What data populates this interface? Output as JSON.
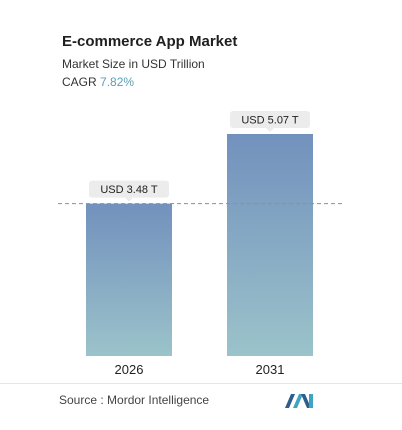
{
  "header": {
    "title": "E-commerce App Market",
    "subtitle": "Market Size in USD Trillion",
    "cagr_label": "CAGR",
    "cagr_value": "7.82%"
  },
  "chart_data": {
    "type": "bar",
    "categories": [
      "2026",
      "2031"
    ],
    "values": [
      3.48,
      5.07
    ],
    "value_labels": [
      "USD 3.48 T",
      "USD 5.07 T"
    ],
    "title": "E-commerce App Market",
    "subtitle": "Market Size in USD Trillion",
    "xlabel": "",
    "ylabel": "",
    "unit": "USD Trillion",
    "ylim": [
      0,
      5.07
    ],
    "grid": false,
    "reference_line": {
      "value": 3.48,
      "style": "dashed"
    },
    "colors": {
      "bar_top": "#7291bd",
      "bar_bottom": "#9bc3ca",
      "ref_line": "#6f9aa8"
    }
  },
  "footer": {
    "source_label": "Source :",
    "source_value": "Mordor Intelligence",
    "logo_icon": "mordor-intelligence-logo-icon"
  }
}
